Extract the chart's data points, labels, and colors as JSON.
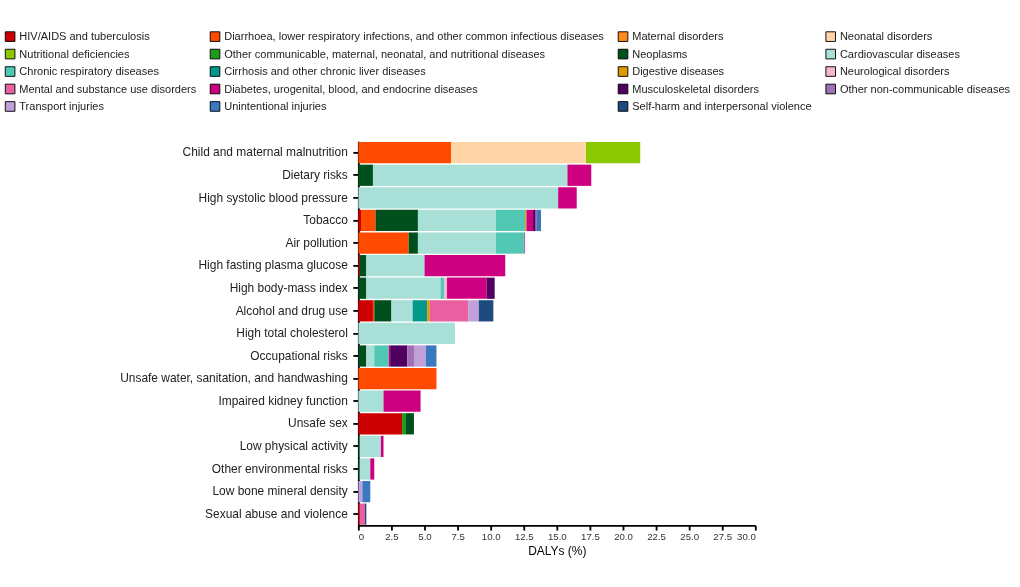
{
  "chart_data": {
    "type": "bar",
    "orientation": "horizontal",
    "stacked": true,
    "xlabel": "DALYs (%)",
    "legend": "top",
    "grid": false,
    "categories": [
      "Child and maternal malnutrition",
      "Dietary risks",
      "High systolic blood pressure",
      "Tobacco",
      "Air pollution",
      "High fasting plasma glucose",
      "High body-mass index",
      "Alcohol and drug use",
      "High total cholesterol",
      "Occupational risks",
      "Unsafe water, sanitation, and handwashing",
      "Impaired kidney function",
      "Unsafe sex",
      "Low physical activity",
      "Other environmental risks",
      "Low bone mineral density",
      "Sexual abuse and violence"
    ],
    "xlim": [
      0,
      30
    ],
    "xticks": [
      0,
      2.5,
      {
        "value": 5,
        "label": "5.0"
      },
      7.5,
      {
        "value": 10,
        "label": "10.0"
      },
      12.5,
      {
        "value": 15,
        "label": "15.0"
      },
      17.5,
      {
        "value": 20,
        "label": "20.0"
      },
      22.5,
      {
        "value": 25,
        "label": "25.0"
      },
      27.5,
      {
        "value": 30,
        "label": "30.0"
      }
    ],
    "series": [
      {
        "name": "HIV/AIDS and tuberculosis",
        "color": "#cc0000",
        "values": [
          null,
          null,
          null,
          0.2,
          null,
          0.1,
          null,
          1.1,
          null,
          null,
          null,
          null,
          3.3,
          null,
          null,
          null,
          0.1
        ]
      },
      {
        "name": "Diarrhoea, lower respiratory infections, and other common infectious diseases",
        "color": "#ff4a00",
        "values": [
          7.0,
          null,
          null,
          1.1,
          3.8,
          null,
          null,
          0.1,
          null,
          null,
          5.9,
          null,
          null,
          null,
          null,
          null,
          null
        ]
      },
      {
        "name": "Maternal disorders",
        "color": "#ff8c1a",
        "values": [
          null,
          null,
          null,
          null,
          null,
          null,
          null,
          null,
          null,
          null,
          null,
          null,
          null,
          null,
          null,
          null,
          null
        ]
      },
      {
        "name": "Neonatal disorders",
        "color": "#ffd5a8",
        "values": [
          10.2,
          null,
          null,
          null,
          null,
          null,
          null,
          null,
          null,
          null,
          null,
          null,
          null,
          null,
          null,
          null,
          null
        ]
      },
      {
        "name": "Nutritional deficiencies",
        "color": "#8cc800",
        "values": [
          4.1,
          null,
          null,
          null,
          null,
          null,
          null,
          null,
          null,
          null,
          null,
          null,
          null,
          null,
          null,
          null,
          null
        ]
      },
      {
        "name": "Other communicable, maternal, neonatal, and nutritional diseases",
        "color": "#1e9c1e",
        "values": [
          null,
          null,
          null,
          null,
          null,
          null,
          null,
          null,
          null,
          null,
          null,
          null,
          0.3,
          null,
          null,
          null,
          null
        ]
      },
      {
        "name": "Neoplasms",
        "color": "#00501e",
        "values": [
          null,
          1.1,
          null,
          3.2,
          0.7,
          0.5,
          0.6,
          1.3,
          null,
          0.6,
          null,
          null,
          0.6,
          0.1,
          0.1,
          null,
          null
        ]
      },
      {
        "name": "Cardiovascular diseases",
        "color": "#a8e0d8",
        "values": [
          null,
          14.7,
          15.1,
          5.9,
          5.9,
          4.4,
          5.6,
          1.6,
          7.3,
          0.6,
          null,
          1.9,
          null,
          1.6,
          0.8,
          null,
          null
        ]
      },
      {
        "name": "Chronic respiratory diseases",
        "color": "#50c8b4",
        "values": [
          null,
          null,
          null,
          2.2,
          2.1,
          null,
          0.3,
          null,
          null,
          1.1,
          null,
          null,
          null,
          null,
          null,
          null,
          null
        ]
      },
      {
        "name": "Cirrhosis and other chronic liver diseases",
        "color": "#00998c",
        "values": [
          null,
          null,
          null,
          null,
          null,
          null,
          null,
          1.1,
          null,
          null,
          null,
          null,
          null,
          null,
          null,
          null,
          null
        ]
      },
      {
        "name": "Digestive diseases",
        "color": "#e09a00",
        "values": [
          null,
          null,
          null,
          0.1,
          null,
          null,
          null,
          0.2,
          null,
          null,
          null,
          null,
          null,
          null,
          null,
          null,
          null
        ]
      },
      {
        "name": "Neurological disorders",
        "color": "#f8b4d0",
        "values": [
          null,
          null,
          null,
          null,
          null,
          null,
          0.2,
          null,
          null,
          null,
          null,
          null,
          null,
          null,
          null,
          null,
          null
        ]
      },
      {
        "name": "Mental and substance use disorders",
        "color": "#e860a0",
        "values": [
          null,
          null,
          null,
          null,
          null,
          null,
          null,
          2.9,
          null,
          null,
          null,
          null,
          null,
          null,
          null,
          null,
          0.4
        ]
      },
      {
        "name": "Diabetes, urogenital, blood, and endocrine diseases",
        "color": "#cc0080",
        "values": [
          null,
          1.8,
          1.4,
          0.5,
          null,
          6.1,
          3.0,
          null,
          null,
          0.1,
          null,
          2.8,
          null,
          0.2,
          0.3,
          null,
          null
        ]
      },
      {
        "name": "Musculoskeletal disorders",
        "color": "#500060",
        "values": [
          null,
          null,
          null,
          0.2,
          null,
          null,
          0.6,
          null,
          null,
          1.3,
          null,
          null,
          null,
          null,
          null,
          null,
          null
        ]
      },
      {
        "name": "Other non-communicable diseases",
        "color": "#a070b0",
        "values": [
          null,
          null,
          null,
          0.1,
          0.1,
          null,
          null,
          null,
          null,
          0.5,
          null,
          null,
          null,
          null,
          null,
          null,
          null
        ]
      },
      {
        "name": "Transport injuries",
        "color": "#c0a0d8",
        "values": [
          null,
          null,
          null,
          null,
          null,
          null,
          null,
          0.8,
          null,
          0.9,
          null,
          null,
          null,
          null,
          null,
          0.3,
          null
        ]
      },
      {
        "name": "Unintentional injuries",
        "color": "#3a78c0",
        "values": [
          null,
          null,
          null,
          0.3,
          null,
          null,
          null,
          null,
          null,
          0.8,
          null,
          null,
          null,
          null,
          null,
          0.6,
          null
        ]
      },
      {
        "name": "Self-harm and interpersonal violence",
        "color": "#1e4a80",
        "values": [
          null,
          null,
          null,
          null,
          null,
          null,
          null,
          1.1,
          null,
          null,
          null,
          null,
          null,
          null,
          null,
          null,
          0.1
        ]
      }
    ]
  }
}
